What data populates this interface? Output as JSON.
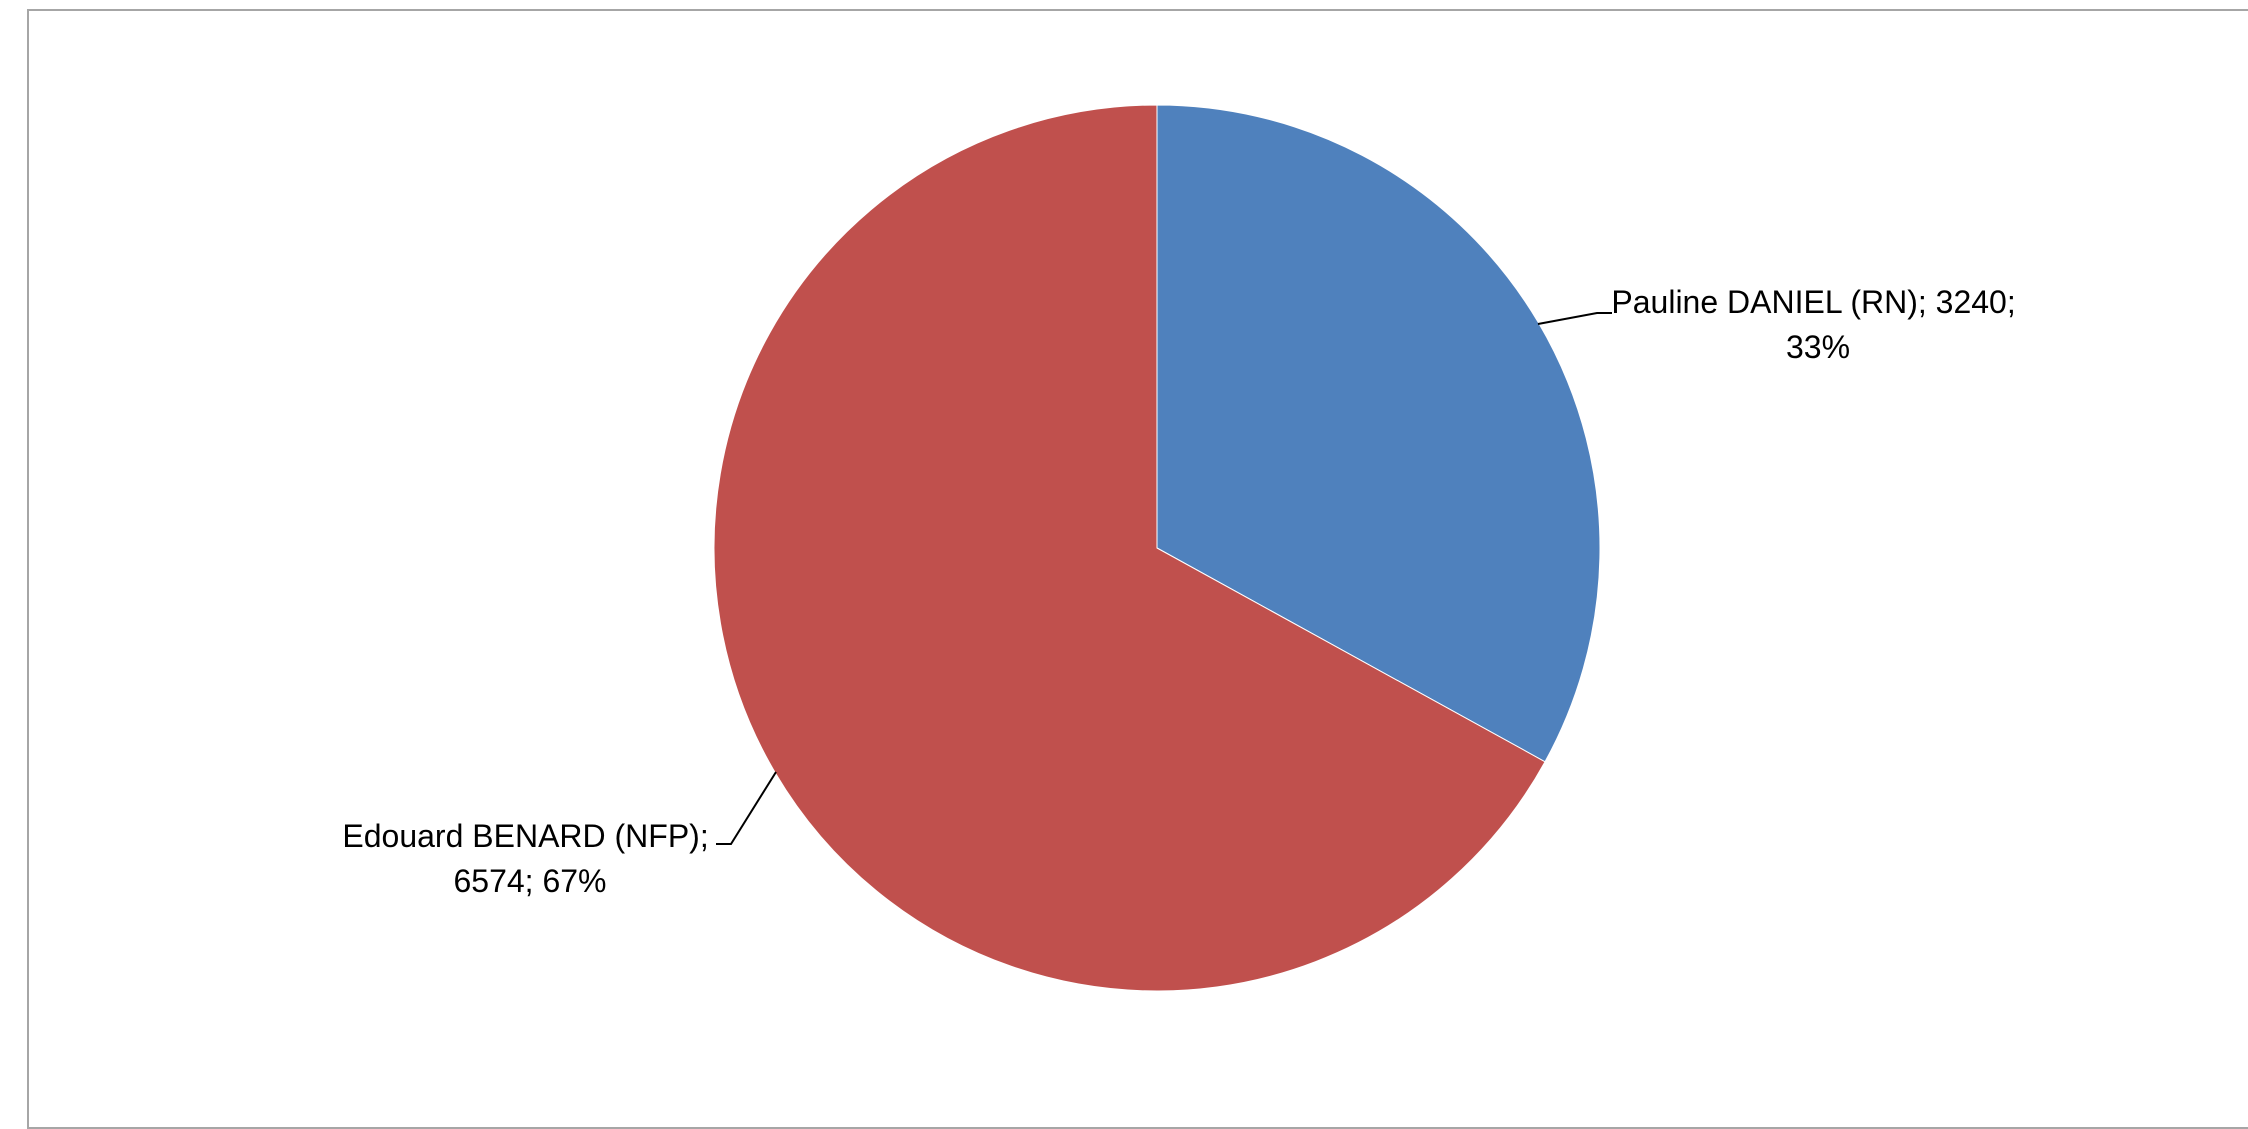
{
  "chart_data": {
    "type": "pie",
    "title": "",
    "legend": "none",
    "slices": [
      {
        "name": "Pauline DANIEL (RN)",
        "value": 3240,
        "percent": "33%",
        "label_line1": "Pauline DANIEL (RN); 3240;",
        "label_line2": "33%",
        "color": "#4f81bd"
      },
      {
        "name": "Edouard BENARD (NFP)",
        "value": 6574,
        "percent": "67%",
        "label_line1": "Edouard BENARD (NFP);",
        "label_line2": "6574; 67%",
        "color": "#c0504d"
      }
    ]
  }
}
